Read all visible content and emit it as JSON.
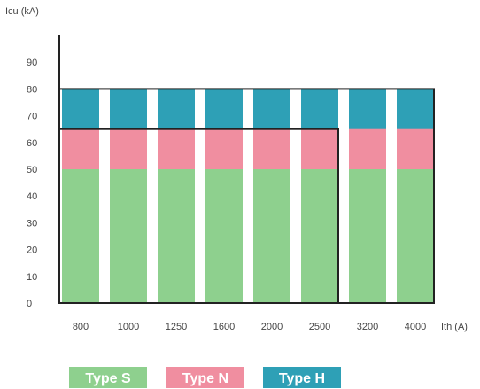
{
  "chart_data": {
    "type": "bar",
    "categories": [
      "800",
      "1000",
      "1250",
      "1600",
      "2000",
      "2500",
      "3200",
      "4000"
    ],
    "series": [
      {
        "name": "Type S",
        "values": [
          50,
          50,
          50,
          50,
          50,
          50,
          50,
          50
        ]
      },
      {
        "name": "Type N",
        "values": [
          65,
          65,
          65,
          65,
          65,
          65,
          65,
          65
        ]
      },
      {
        "name": "Type H",
        "values": [
          80,
          80,
          80,
          80,
          80,
          80,
          80,
          80
        ]
      }
    ],
    "xlabel": "Ith (A)",
    "ylabel": "Icu (kA)",
    "yticks": [
      0,
      10,
      20,
      30,
      40,
      50,
      60,
      70,
      80,
      90
    ],
    "ylim": [
      0,
      95
    ],
    "colors": {
      "Type S": "#8ed08e",
      "Type N": "#f08ea0",
      "Type H": "#2ea0b6"
    },
    "frames": [
      {
        "value": 80,
        "from_category": "800",
        "to_category": "4000"
      },
      {
        "value": 65,
        "from_category": "800",
        "to_category": "2500"
      }
    ],
    "legend_position": "bottom-left"
  }
}
